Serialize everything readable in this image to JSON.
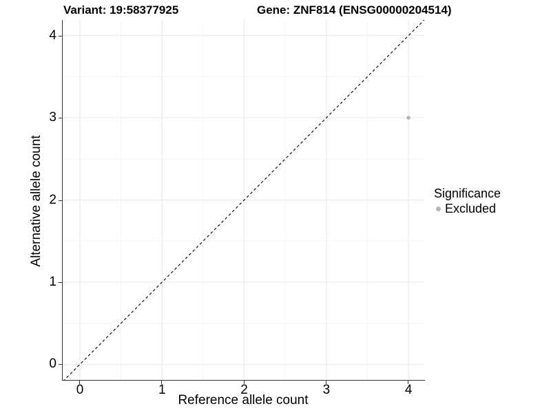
{
  "chart_data": {
    "type": "scatter",
    "title_left": "Variant: 19:58377925",
    "title_right": "Gene: ZNF814 (ENSG00000204514)",
    "xlabel": "Reference allele count",
    "ylabel": "Alternative allele count",
    "xlim": [
      -0.21,
      4.2
    ],
    "ylim": [
      -0.19,
      4.19
    ],
    "x_ticks": [
      0,
      1,
      2,
      3,
      4
    ],
    "y_ticks": [
      0,
      1,
      2,
      3,
      4
    ],
    "minor_grid_step": 0.5,
    "grid": "major+minor",
    "identity_line": {
      "style": "dashed",
      "color": "#000000",
      "from": -0.25,
      "to": 4.25
    },
    "points": [
      {
        "x": 4,
        "y": 3,
        "significance": "Excluded",
        "color": "#b5b5b5"
      }
    ],
    "legend": {
      "position": "right",
      "title": "Significance",
      "items": [
        {
          "label": "Excluded",
          "color": "#b5b5b5"
        }
      ]
    },
    "colors": {
      "grid_major": "#e9e9e9",
      "grid_minor": "#f4f4f4",
      "axis_line": "#333333",
      "tick": "#333333",
      "text": "#000000",
      "background": "#ffffff"
    }
  }
}
